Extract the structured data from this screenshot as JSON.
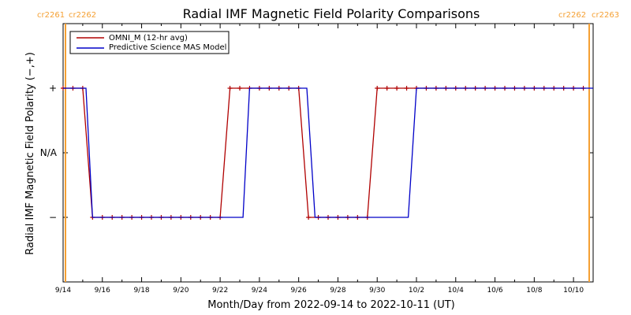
{
  "chart_data": {
    "type": "line",
    "title": "Radial IMF Magnetic Field Polarity Comparisons",
    "xlabel": "Month/Day from 2022-09-14 to 2022-10-11 (UT)",
    "ylabel": "Radial IMF Magnetic Field Polarity (−,+)",
    "x_tick_labels": [
      "9/14",
      "9/16",
      "9/18",
      "9/20",
      "9/22",
      "9/24",
      "9/26",
      "9/28",
      "9/30",
      "10/2",
      "10/4",
      "10/6",
      "10/8",
      "10/10"
    ],
    "y_tick_labels": [
      "+",
      "N/A",
      "−"
    ],
    "y_tick_values": [
      1,
      0,
      -1
    ],
    "xlim": [
      "2022-09-14",
      "2022-10-11"
    ],
    "ylim": [
      -2,
      2
    ],
    "carrington_labels": {
      "left": [
        "cr2261",
        "cr2262"
      ],
      "right": [
        "cr2262",
        "cr2263"
      ]
    },
    "colors": {
      "omni": "#b00000",
      "model": "#0000c8",
      "carrington": "#f5a033",
      "frame": "#000000"
    },
    "series": [
      {
        "name": "OMNI_M (12-hr avg)",
        "color": "#b00000",
        "markers": true,
        "x": [
          "2022-09-14T00:00",
          "2022-09-14T12:00",
          "2022-09-15T00:00",
          "2022-09-15T12:00",
          "2022-09-16T00:00",
          "2022-09-16T12:00",
          "2022-09-17T00:00",
          "2022-09-17T12:00",
          "2022-09-18T00:00",
          "2022-09-18T12:00",
          "2022-09-19T00:00",
          "2022-09-19T12:00",
          "2022-09-20T00:00",
          "2022-09-20T12:00",
          "2022-09-21T00:00",
          "2022-09-21T12:00",
          "2022-09-22T00:00",
          "2022-09-22T12:00",
          "2022-09-23T00:00",
          "2022-09-23T12:00",
          "2022-09-24T00:00",
          "2022-09-24T12:00",
          "2022-09-25T00:00",
          "2022-09-25T12:00",
          "2022-09-26T00:00",
          "2022-09-26T12:00",
          "2022-09-27T00:00",
          "2022-09-27T12:00",
          "2022-09-28T00:00",
          "2022-09-28T12:00",
          "2022-09-29T00:00",
          "2022-09-29T12:00",
          "2022-09-30T00:00",
          "2022-09-30T12:00",
          "2022-10-01T00:00",
          "2022-10-01T12:00",
          "2022-10-02T00:00",
          "2022-10-02T12:00",
          "2022-10-03T00:00",
          "2022-10-03T12:00",
          "2022-10-04T00:00",
          "2022-10-04T12:00",
          "2022-10-05T00:00",
          "2022-10-05T12:00",
          "2022-10-06T00:00",
          "2022-10-06T12:00",
          "2022-10-07T00:00",
          "2022-10-07T12:00",
          "2022-10-08T00:00",
          "2022-10-08T12:00",
          "2022-10-09T00:00",
          "2022-10-09T12:00",
          "2022-10-10T00:00",
          "2022-10-10T12:00"
        ],
        "values": [
          1,
          1,
          1,
          -1,
          -1,
          -1,
          -1,
          -1,
          -1,
          -1,
          -1,
          -1,
          -1,
          -1,
          -1,
          -1,
          -1,
          1,
          1,
          1,
          1,
          1,
          1,
          1,
          1,
          -1,
          -1,
          -1,
          -1,
          -1,
          -1,
          -1,
          1,
          1,
          1,
          1,
          1,
          1,
          1,
          1,
          1,
          1,
          1,
          1,
          1,
          1,
          1,
          1,
          1,
          1,
          1,
          1,
          1,
          1
        ]
      },
      {
        "name": "Predictive Science MAS Model",
        "color": "#0000c8",
        "markers": false,
        "x": [
          "2022-09-14T00:00",
          "2022-09-15T04:00",
          "2022-09-15T12:00",
          "2022-09-23T04:00",
          "2022-09-23T12:00",
          "2022-09-26T10:00",
          "2022-09-26T20:00",
          "2022-10-01T14:00",
          "2022-10-02T00:00",
          "2022-10-11T00:00"
        ],
        "values": [
          1,
          1,
          -1,
          -1,
          1,
          1,
          -1,
          -1,
          1,
          1
        ]
      }
    ],
    "legend_placement": "top-left",
    "grid": false
  }
}
